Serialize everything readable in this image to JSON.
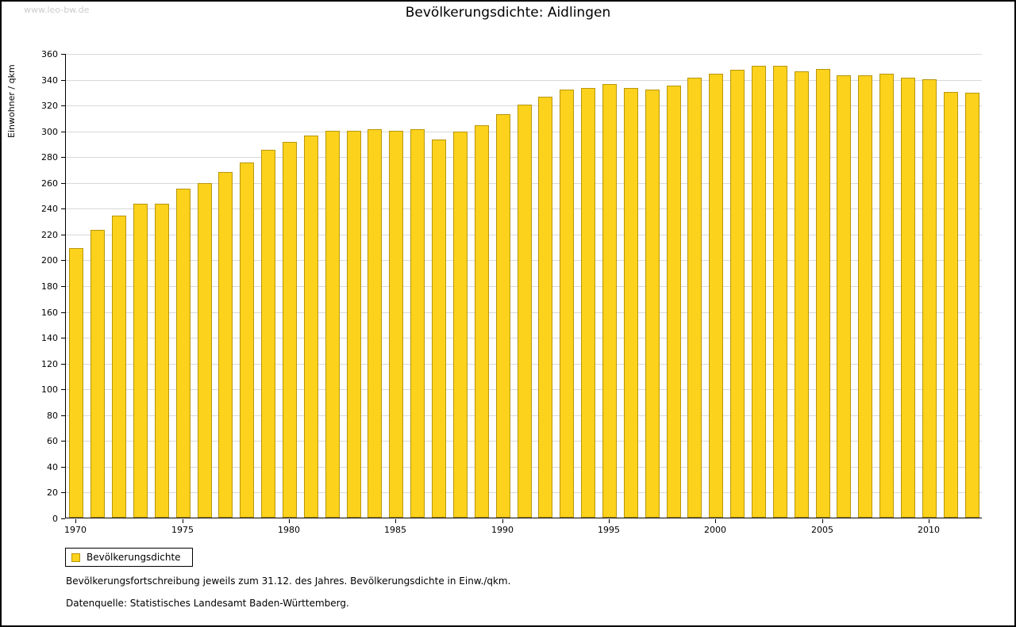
{
  "watermark": "www.leo-bw.de",
  "footer": {
    "line1": "Bevölkerungsfortschreibung jeweils zum 31.12. des Jahres. Bevölkerungsdichte in Einw./qkm.",
    "line2": "Datenquelle: Statistisches Landesamt Baden-Württemberg."
  },
  "chart_data": {
    "type": "bar",
    "title": "Bevölkerungsdichte: Aidlingen",
    "ylabel": "Einwohner / qkm",
    "xlabel": "",
    "ylim": [
      0,
      360
    ],
    "ytick_step": 20,
    "grid": true,
    "legend_label": "Bevölkerungsdichte",
    "legend_position": "bottom-left",
    "bar_color": "#FCD21C",
    "bar_border_color": "#B8960C",
    "grid_color": "#d8d8d8",
    "xticks": [
      1970,
      1975,
      1980,
      1985,
      1990,
      1995,
      2000,
      2005,
      2010
    ],
    "categories": [
      1970,
      1971,
      1972,
      1973,
      1974,
      1975,
      1976,
      1977,
      1978,
      1979,
      1980,
      1981,
      1982,
      1983,
      1984,
      1985,
      1986,
      1987,
      1988,
      1989,
      1990,
      1991,
      1992,
      1993,
      1994,
      1995,
      1996,
      1997,
      1998,
      1999,
      2000,
      2001,
      2002,
      2003,
      2004,
      2005,
      2006,
      2007,
      2008,
      2009,
      2010,
      2011,
      2012
    ],
    "values": [
      209,
      223,
      234,
      243,
      243,
      255,
      259,
      268,
      275,
      285,
      291,
      296,
      300,
      300,
      301,
      300,
      301,
      293,
      299,
      304,
      313,
      320,
      326,
      332,
      333,
      336,
      333,
      332,
      335,
      341,
      344,
      347,
      350,
      350,
      346,
      348,
      343,
      343,
      344,
      341,
      340,
      330,
      329
    ]
  }
}
